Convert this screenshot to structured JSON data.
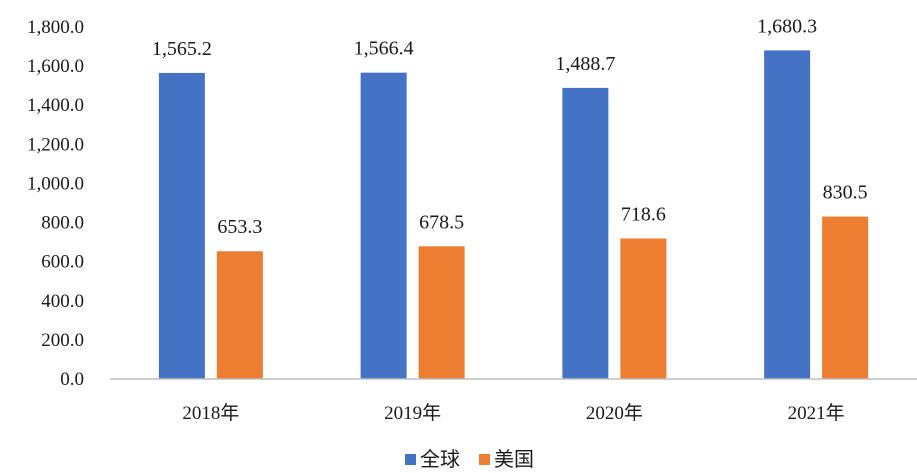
{
  "chart_data": {
    "type": "bar",
    "title": "",
    "xlabel": "",
    "ylabel": "",
    "categories": [
      "2018年",
      "2019年",
      "2020年",
      "2021年"
    ],
    "series": [
      {
        "name": "全球",
        "color": "#4472C4",
        "values": [
          1565.2,
          1566.4,
          1488.7,
          1680.3
        ],
        "labels": [
          "1,565.2",
          "1,566.4",
          "1,488.7",
          "1,680.3"
        ]
      },
      {
        "name": "美国",
        "color": "#ED7D31",
        "values": [
          653.3,
          678.5,
          718.6,
          830.5
        ],
        "labels": [
          "653.3",
          "678.5",
          "718.6",
          "830.5"
        ]
      }
    ],
    "ylim": [
      0,
      1800
    ],
    "yticks": [
      0,
      200,
      400,
      600,
      800,
      1000,
      1200,
      1400,
      1600,
      1800
    ],
    "ytick_labels": [
      "0.0",
      "200.0",
      "400.0",
      "600.0",
      "800.0",
      "1,000.0",
      "1,200.0",
      "1,400.0",
      "1,600.0",
      "1,800.0"
    ],
    "grid": false,
    "legend_position": "bottom",
    "axis_color": "#BFBFBF"
  }
}
